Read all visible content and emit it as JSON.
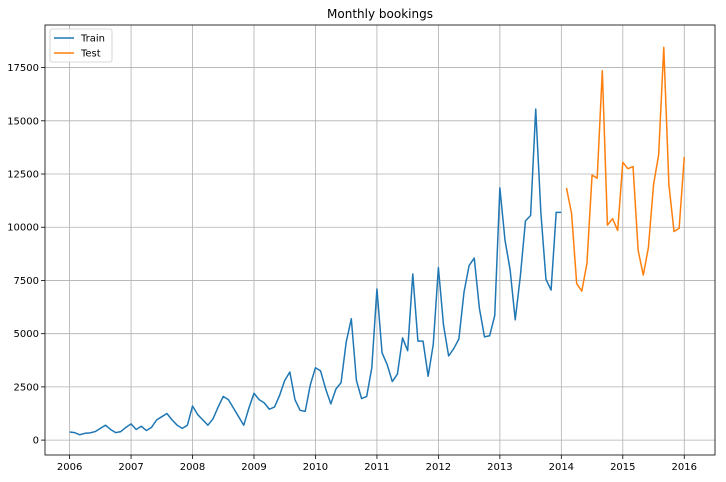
{
  "chart_data": {
    "type": "line",
    "title": "Monthly bookings",
    "xlabel": "",
    "ylabel": "",
    "grid": true,
    "legend_position": "top-left",
    "xlim": [
      2005.6,
      2016.5
    ],
    "ylim": [
      -700,
      19500
    ],
    "x_ticks": [
      2006,
      2007,
      2008,
      2009,
      2010,
      2011,
      2012,
      2013,
      2014,
      2015,
      2016
    ],
    "x_tick_labels": [
      "2006",
      "2007",
      "2008",
      "2009",
      "2010",
      "2011",
      "2012",
      "2013",
      "2014",
      "2015",
      "2016"
    ],
    "y_ticks": [
      0,
      2500,
      5000,
      7500,
      10000,
      12500,
      15000,
      17500
    ],
    "y_tick_labels": [
      "0",
      "2500",
      "5000",
      "7500",
      "10000",
      "12500",
      "15000",
      "17500"
    ],
    "series": [
      {
        "name": "Train",
        "color": "#1f77b4",
        "x": [
          "2006-01",
          "2006-02",
          "2006-03",
          "2006-04",
          "2006-05",
          "2006-06",
          "2006-07",
          "2006-08",
          "2006-09",
          "2006-10",
          "2006-11",
          "2006-12",
          "2007-01",
          "2007-02",
          "2007-03",
          "2007-04",
          "2007-05",
          "2007-06",
          "2007-07",
          "2007-08",
          "2007-09",
          "2007-10",
          "2007-11",
          "2007-12",
          "2008-01",
          "2008-02",
          "2008-03",
          "2008-04",
          "2008-05",
          "2008-06",
          "2008-07",
          "2008-08",
          "2008-09",
          "2008-10",
          "2008-11",
          "2008-12",
          "2009-01",
          "2009-02",
          "2009-03",
          "2009-04",
          "2009-05",
          "2009-06",
          "2009-07",
          "2009-08",
          "2009-09",
          "2009-10",
          "2009-11",
          "2009-12",
          "2010-01",
          "2010-02",
          "2010-03",
          "2010-04",
          "2010-05",
          "2010-06",
          "2010-07",
          "2010-08",
          "2010-09",
          "2010-10",
          "2010-11",
          "2010-12",
          "2011-01",
          "2011-02",
          "2011-03",
          "2011-04",
          "2011-05",
          "2011-06",
          "2011-07",
          "2011-08",
          "2011-09",
          "2011-10",
          "2011-11",
          "2011-12",
          "2012-01",
          "2012-02",
          "2012-03",
          "2012-04",
          "2012-05",
          "2012-06",
          "2012-07",
          "2012-08",
          "2012-09",
          "2012-10",
          "2012-11",
          "2012-12",
          "2013-01",
          "2013-02",
          "2013-03",
          "2013-04",
          "2013-05",
          "2013-06",
          "2013-07",
          "2013-08",
          "2013-09",
          "2013-10",
          "2013-11",
          "2013-12",
          "2014-01"
        ],
        "values": [
          380,
          350,
          250,
          320,
          340,
          400,
          550,
          700,
          500,
          350,
          400,
          600,
          760,
          500,
          650,
          450,
          600,
          950,
          1100,
          1250,
          950,
          700,
          550,
          700,
          1600,
          1200,
          950,
          700,
          1000,
          1550,
          2050,
          1900,
          1500,
          1100,
          700,
          1500,
          2200,
          1900,
          1750,
          1450,
          1550,
          2100,
          2800,
          3200,
          1900,
          1400,
          1350,
          2600,
          3400,
          3250,
          2400,
          1700,
          2400,
          2700,
          4600,
          5700,
          2800,
          1950,
          2050,
          3400,
          7100,
          4100,
          3550,
          2750,
          3100,
          4800,
          4200,
          7800,
          4650,
          4650,
          3000,
          4500,
          8100,
          5400,
          3950,
          4300,
          4750,
          6950,
          8200,
          8550,
          6200,
          4850,
          4900,
          5850,
          11850,
          9400,
          8000,
          5650,
          7700,
          10300,
          10550,
          15550,
          10700,
          7550,
          7050,
          10700,
          10700
        ]
      },
      {
        "name": "Test",
        "color": "#ff7f0e",
        "x": [
          "2014-02",
          "2014-03",
          "2014-04",
          "2014-05",
          "2014-06",
          "2014-07",
          "2014-08",
          "2014-09",
          "2014-10",
          "2014-11",
          "2014-12",
          "2015-01",
          "2015-02",
          "2015-03",
          "2015-04",
          "2015-05",
          "2015-06",
          "2015-07",
          "2015-08",
          "2015-09",
          "2015-10",
          "2015-11",
          "2015-12",
          "2016-01"
        ],
        "values": [
          11850,
          10650,
          7350,
          7000,
          8300,
          12450,
          12300,
          17350,
          10100,
          10400,
          9850,
          13050,
          12750,
          12850,
          8900,
          7750,
          9050,
          12000,
          13400,
          18450,
          12000,
          9800,
          9950,
          13300
        ]
      }
    ]
  }
}
